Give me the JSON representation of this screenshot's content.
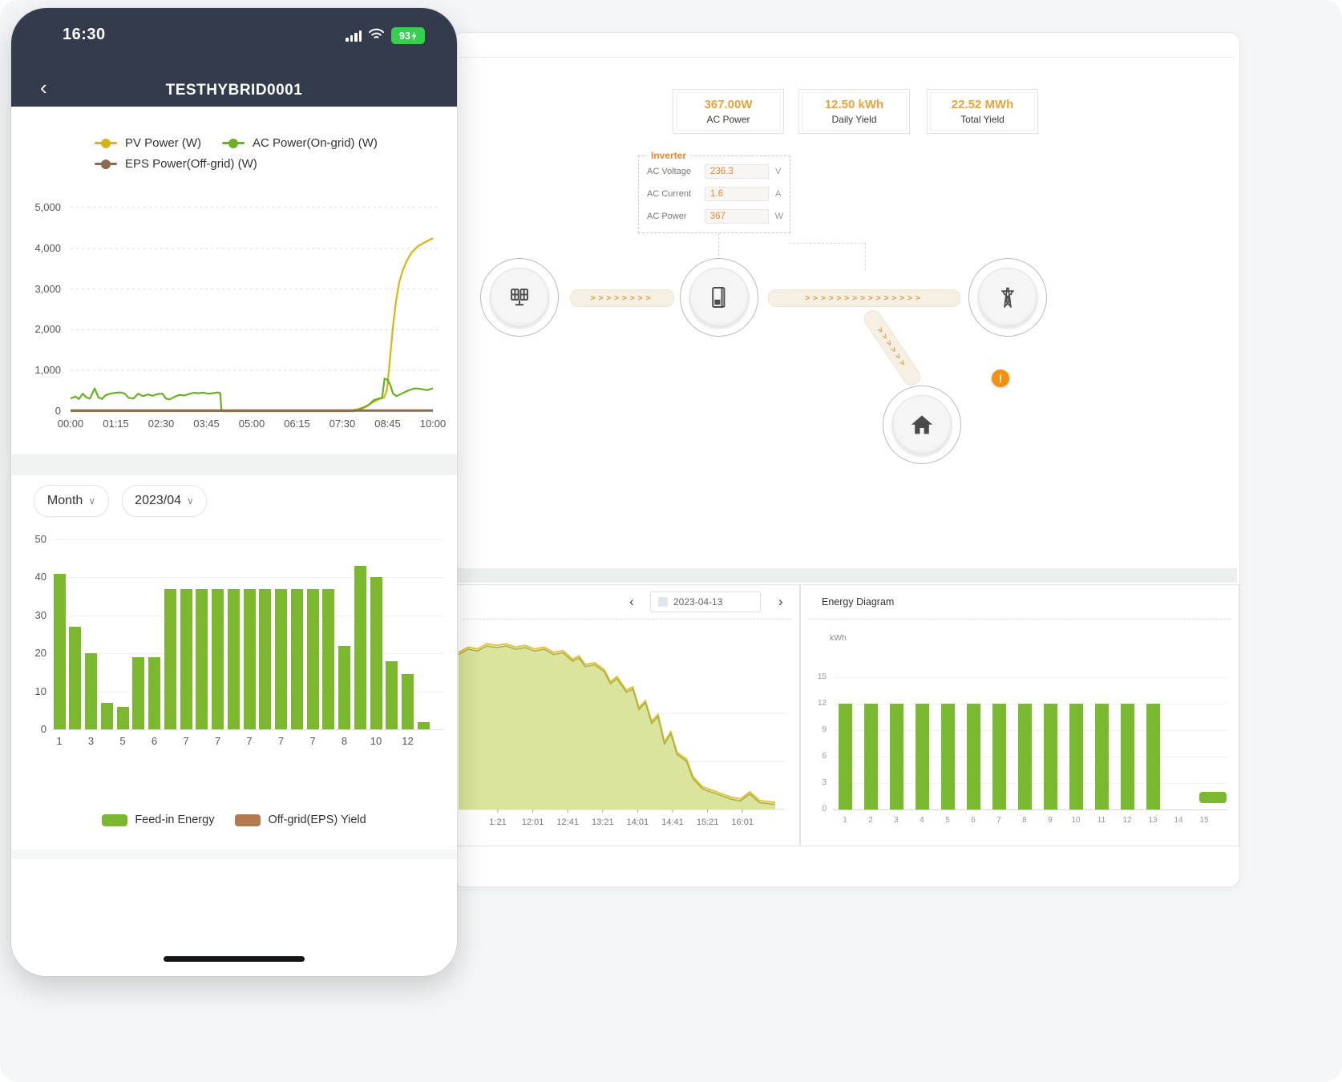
{
  "colors": {
    "header_bg": "#343b4d",
    "accent_orange": "#e99a36",
    "stat_orange": "#e9a23c",
    "bar_green": "#7cb82f",
    "pv_yellow": "#d8b511",
    "ac_green": "#6cae24",
    "eps_brown": "#8a6a50",
    "legend_brown": "#b5794f",
    "battery_green": "#35d04d",
    "warning_orange": "#f0920f",
    "area_fill": "#dbe39c",
    "area_stroke": "#a9b13f",
    "area_top": "#e2c13d"
  },
  "phone": {
    "status_bar": {
      "time": "16:30",
      "battery_percent": "93"
    },
    "nav": {
      "back": "‹",
      "title": "TESTHYBRID0001"
    },
    "power_chart": {
      "type": "line",
      "y_ticks": [
        "5,000",
        "4,000",
        "3,000",
        "2,000",
        "1,000",
        "0"
      ],
      "y_values": [
        5000,
        4000,
        3000,
        2000,
        1000,
        0
      ],
      "y_max": 5000,
      "x_ticks": [
        "00:00",
        "01:15",
        "02:30",
        "03:45",
        "05:00",
        "06:15",
        "07:30",
        "08:45",
        "10:00"
      ],
      "x_max_minutes": 600,
      "legend": [
        {
          "label": "PV Power (W)",
          "color": "#d8b511"
        },
        {
          "label": "AC Power(On-grid) (W)",
          "color": "#6cae24"
        },
        {
          "label": "EPS Power(Off-grid) (W)",
          "color": "#8a6a50"
        }
      ],
      "series": [
        {
          "name": "PV Power (W)",
          "color": "#d8b511",
          "width": 2.2,
          "points": [
            [
              0,
              0
            ],
            [
              455,
              0
            ],
            [
              465,
              15
            ],
            [
              475,
              50
            ],
            [
              485,
              95
            ],
            [
              495,
              170
            ],
            [
              505,
              250
            ],
            [
              513,
              310
            ],
            [
              519,
              330
            ],
            [
              524,
              520
            ],
            [
              529,
              1300
            ],
            [
              534,
              2100
            ],
            [
              539,
              2700
            ],
            [
              544,
              3150
            ],
            [
              550,
              3450
            ],
            [
              557,
              3700
            ],
            [
              565,
              3900
            ],
            [
              575,
              4050
            ],
            [
              587,
              4150
            ],
            [
              600,
              4250
            ]
          ]
        },
        {
          "name": "AC Power(On-grid) (W)",
          "color": "#6cae24",
          "width": 2.2,
          "points": [
            [
              0,
              310
            ],
            [
              8,
              360
            ],
            [
              14,
              300
            ],
            [
              20,
              430
            ],
            [
              26,
              340
            ],
            [
              32,
              310
            ],
            [
              40,
              560
            ],
            [
              46,
              340
            ],
            [
              52,
              300
            ],
            [
              58,
              390
            ],
            [
              66,
              430
            ],
            [
              74,
              450
            ],
            [
              82,
              460
            ],
            [
              90,
              430
            ],
            [
              96,
              330
            ],
            [
              104,
              310
            ],
            [
              112,
              430
            ],
            [
              120,
              370
            ],
            [
              128,
              410
            ],
            [
              136,
              380
            ],
            [
              144,
              420
            ],
            [
              152,
              430
            ],
            [
              158,
              310
            ],
            [
              164,
              290
            ],
            [
              172,
              350
            ],
            [
              180,
              400
            ],
            [
              188,
              385
            ],
            [
              196,
              420
            ],
            [
              204,
              450
            ],
            [
              212,
              440
            ],
            [
              220,
              455
            ],
            [
              228,
              430
            ],
            [
              236,
              440
            ],
            [
              244,
              460
            ],
            [
              248,
              440
            ],
            [
              250,
              0
            ],
            [
              470,
              0
            ],
            [
              480,
              50
            ],
            [
              492,
              130
            ],
            [
              502,
              270
            ],
            [
              510,
              310
            ],
            [
              516,
              330
            ],
            [
              520,
              800
            ],
            [
              525,
              770
            ],
            [
              530,
              620
            ],
            [
              534,
              430
            ],
            [
              540,
              370
            ],
            [
              548,
              430
            ],
            [
              558,
              500
            ],
            [
              570,
              560
            ],
            [
              580,
              545
            ],
            [
              590,
              515
            ],
            [
              600,
              560
            ]
          ]
        },
        {
          "name": "EPS Power(Off-grid) (W)",
          "color": "#8a6a50",
          "width": 3,
          "points": [
            [
              0,
              15
            ],
            [
              600,
              15
            ]
          ]
        }
      ]
    },
    "filters": {
      "period_label": "Month",
      "month_label": "2023/04",
      "chevron": "∨"
    },
    "month_chart": {
      "type": "bar",
      "y_ticks": [
        50,
        40,
        30,
        20,
        10,
        0
      ],
      "y_max": 50,
      "x_tick_labels": [
        "1",
        "3",
        "5",
        "6",
        "7",
        "7",
        "7",
        "7",
        "7",
        "8",
        "10",
        "12"
      ],
      "values": [
        41,
        27,
        20,
        7,
        6,
        19,
        19,
        37,
        37,
        37,
        37,
        37,
        37,
        37,
        37,
        37,
        37,
        37,
        22,
        43,
        40,
        18,
        14.5,
        2
      ],
      "legend": [
        {
          "label": "Feed-in Energy",
          "color": "#7cb82f"
        },
        {
          "label": "Off-grid(EPS) Yield",
          "color": "#b5794f"
        }
      ]
    }
  },
  "desktop": {
    "stats": [
      {
        "value": "367.00W",
        "label": "AC Power"
      },
      {
        "value": "12.50 kWh",
        "label": "Daily Yield"
      },
      {
        "value": "22.52 MWh",
        "label": "Total Yield"
      }
    ],
    "inverter_panel": {
      "title": "Inverter",
      "rows": [
        {
          "label": "AC Voltage",
          "value": "236.3",
          "unit": "V"
        },
        {
          "label": "AC Current",
          "value": "1.6",
          "unit": "A"
        },
        {
          "label": "AC Power",
          "value": "367",
          "unit": "W"
        }
      ]
    },
    "warning": "!",
    "daily_chart": {
      "type": "area",
      "prev": "‹",
      "next": "›",
      "date": "2023-04-13",
      "x_ticks": [
        "1:21",
        "12:01",
        "12:41",
        "13:21",
        "14:01",
        "14:41",
        "15:21",
        "16:01"
      ],
      "points": [
        [
          0,
          0.9
        ],
        [
          0.03,
          0.93
        ],
        [
          0.06,
          0.92
        ],
        [
          0.09,
          0.95
        ],
        [
          0.12,
          0.94
        ],
        [
          0.15,
          0.95
        ],
        [
          0.18,
          0.93
        ],
        [
          0.21,
          0.94
        ],
        [
          0.24,
          0.92
        ],
        [
          0.27,
          0.93
        ],
        [
          0.3,
          0.9
        ],
        [
          0.33,
          0.91
        ],
        [
          0.36,
          0.86
        ],
        [
          0.38,
          0.88
        ],
        [
          0.4,
          0.83
        ],
        [
          0.43,
          0.84
        ],
        [
          0.46,
          0.8
        ],
        [
          0.48,
          0.73
        ],
        [
          0.5,
          0.76
        ],
        [
          0.53,
          0.68
        ],
        [
          0.55,
          0.7
        ],
        [
          0.57,
          0.58
        ],
        [
          0.59,
          0.62
        ],
        [
          0.61,
          0.5
        ],
        [
          0.63,
          0.54
        ],
        [
          0.65,
          0.38
        ],
        [
          0.67,
          0.44
        ],
        [
          0.69,
          0.32
        ],
        [
          0.72,
          0.28
        ],
        [
          0.74,
          0.18
        ],
        [
          0.77,
          0.12
        ],
        [
          0.8,
          0.1
        ],
        [
          0.83,
          0.08
        ],
        [
          0.86,
          0.06
        ],
        [
          0.89,
          0.05
        ],
        [
          0.92,
          0.09
        ],
        [
          0.95,
          0.04
        ],
        [
          1,
          0.03
        ]
      ]
    },
    "energy_diagram": {
      "type": "bar",
      "title": "Energy Diagram",
      "unit": "kWh",
      "y_ticks": [
        15,
        12,
        9,
        6,
        3,
        0
      ],
      "y_max": 15,
      "x_ticks": [
        "1",
        "2",
        "3",
        "4",
        "5",
        "6",
        "7",
        "8",
        "9",
        "10",
        "11",
        "12",
        "13",
        "14",
        "15"
      ],
      "values": [
        12,
        12,
        12,
        12,
        12,
        12,
        12,
        12,
        12,
        12,
        12,
        12,
        12
      ]
    }
  }
}
